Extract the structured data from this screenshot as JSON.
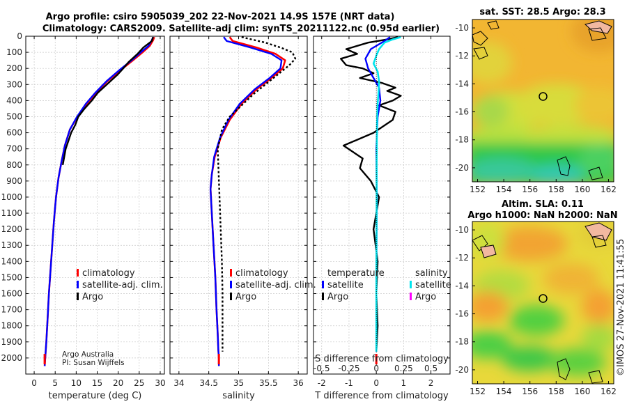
{
  "header": {
    "title1": "Argo profile: csiro 5905039_202 22-Nov-2021 14.9S 157E (NRT data)",
    "title2": "Climatology: CARS2009. Satellite-adj clim: synTS_20211122.nc (0.95d earlier)"
  },
  "attribution": {
    "org": "Argo Australia",
    "pi": "PI: Susan Wijffels"
  },
  "timestamp": "©IMOS 27-Nov-2021 11:41:55",
  "colors": {
    "red": "#ff0000",
    "blue": "#0000ff",
    "black": "#000000",
    "cyan": "#00e5ee",
    "magenta": "#ff00ff"
  },
  "chart_data": [
    {
      "type": "line",
      "name": "temperature-profile",
      "xlabel": "temperature (deg C)",
      "ylabel": "",
      "xlim": [
        -2,
        31
      ],
      "ylim": [
        2100,
        0
      ],
      "xticks": [
        0,
        5,
        10,
        15,
        20,
        25,
        30
      ],
      "yticks": [
        0,
        100,
        200,
        300,
        400,
        500,
        600,
        700,
        800,
        900,
        1000,
        1100,
        1200,
        1300,
        1400,
        1500,
        1600,
        1700,
        1800,
        1900,
        2000
      ],
      "legend": {
        "entries": [
          "climatology",
          "satellite-adj. clim.",
          "Argo"
        ],
        "position": "center-right"
      },
      "series": [
        {
          "name": "climatology",
          "color": "#ff0000",
          "width": 2.6,
          "x": [
            28.6,
            28.3,
            27.5,
            25.8,
            23.5,
            20.6,
            17.4,
            14.8,
            12.5,
            10.3,
            8.5,
            7.3,
            6.5,
            5.8,
            5.2,
            4.7,
            4.3,
            3.9,
            3.5,
            3.2,
            2.9,
            2.65,
            2.5
          ],
          "y": [
            5,
            25,
            60,
            100,
            150,
            210,
            280,
            350,
            420,
            500,
            580,
            680,
            780,
            880,
            1000,
            1150,
            1300,
            1450,
            1600,
            1750,
            1900,
            1995,
            2050
          ]
        },
        {
          "name": "satellite-adj. clim.",
          "color": "#0000ff",
          "width": 2.4,
          "x": [
            28.3,
            28.0,
            27.2,
            25.4,
            23.2,
            20.3,
            17.2,
            14.6,
            12.3,
            10.2,
            8.5,
            7.3,
            6.5,
            5.8,
            5.2,
            4.7,
            4.3,
            3.9,
            3.5,
            3.2,
            2.9,
            2.65,
            2.5
          ],
          "y": [
            5,
            25,
            60,
            100,
            150,
            210,
            280,
            350,
            420,
            500,
            580,
            680,
            780,
            880,
            1000,
            1150,
            1300,
            1450,
            1600,
            1750,
            1900,
            1995,
            2050
          ]
        },
        {
          "name": "Argo",
          "color": "#000000",
          "width": 2.4,
          "x": [
            28.3,
            28.0,
            26.0,
            24.6,
            22.5,
            21.2,
            19.8,
            17.3,
            15.2,
            13.7,
            12.0,
            10.5,
            9.8,
            8.8,
            7.5,
            6.8
          ],
          "y": [
            5,
            30,
            70,
            110,
            160,
            200,
            240,
            300,
            350,
            400,
            450,
            500,
            550,
            600,
            700,
            800
          ]
        },
        {
          "name": "bottom-marker",
          "color": "#ff0000",
          "width": 3,
          "x": [
            2.5,
            2.5
          ],
          "y": [
            1975,
            2040
          ]
        }
      ]
    },
    {
      "type": "line",
      "name": "salinity-profile",
      "xlabel": "salinity",
      "xlim": [
        33.85,
        36.15
      ],
      "ylim": [
        2100,
        0
      ],
      "xticks": [
        34,
        34.5,
        35,
        35.5,
        36
      ],
      "xticklabels": [
        "34",
        "34.5",
        "35",
        "35.5",
        "36"
      ],
      "legend": {
        "entries": [
          "climatology",
          "satellite-adj. clim.",
          "Argo"
        ],
        "position": "center-right"
      },
      "series": [
        {
          "name": "climatology",
          "color": "#ff0000",
          "width": 2.6,
          "x": [
            34.85,
            34.9,
            35.3,
            35.62,
            35.78,
            35.74,
            35.55,
            35.3,
            35.05,
            34.85,
            34.7,
            34.6,
            34.55,
            34.53,
            34.55,
            34.58,
            34.61,
            34.63,
            34.65,
            34.66,
            34.67,
            34.67
          ],
          "y": [
            5,
            30,
            70,
            110,
            150,
            200,
            260,
            330,
            420,
            520,
            630,
            750,
            860,
            950,
            1100,
            1300,
            1500,
            1700,
            1850,
            1950,
            2000,
            2050
          ]
        },
        {
          "name": "satellite-adj. clim.",
          "color": "#0000ff",
          "width": 2.4,
          "x": [
            34.75,
            34.8,
            35.2,
            35.55,
            35.72,
            35.7,
            35.52,
            35.27,
            35.02,
            34.83,
            34.69,
            34.59,
            34.55,
            34.53,
            34.55,
            34.58,
            34.61,
            34.63,
            34.65,
            34.66,
            34.67,
            34.67
          ],
          "y": [
            5,
            30,
            70,
            110,
            150,
            200,
            260,
            330,
            420,
            520,
            630,
            750,
            860,
            950,
            1100,
            1300,
            1500,
            1700,
            1850,
            1950,
            2000,
            2050
          ]
        },
        {
          "name": "Argo",
          "color": "#000000",
          "width": 2.4,
          "dash": "3,3",
          "x": [
            35.05,
            35.45,
            35.7,
            35.9,
            35.95,
            35.85,
            35.65,
            35.45,
            35.25,
            35.05,
            34.85,
            34.72,
            34.68,
            34.65,
            34.66,
            34.68,
            34.7,
            34.72,
            34.73,
            34.73,
            34.73
          ],
          "y": [
            5,
            40,
            70,
            100,
            140,
            180,
            240,
            300,
            360,
            430,
            500,
            580,
            650,
            700,
            800,
            1000,
            1200,
            1400,
            1600,
            1800,
            1960
          ]
        },
        {
          "name": "bottom-marker",
          "color": "#ff0000",
          "width": 3,
          "x": [
            34.67,
            34.67
          ],
          "y": [
            1975,
            2040
          ]
        }
      ]
    },
    {
      "type": "line",
      "name": "difference-profile",
      "xlabel": "T difference from climatology",
      "x2label": "S difference from climatology",
      "xlim": [
        -2.3,
        2.7
      ],
      "ylim": [
        2100,
        0
      ],
      "xticks": [
        -2,
        -1,
        0,
        1,
        2
      ],
      "x2ticks": [
        "-0.5",
        "-0.25",
        "0",
        "0.25",
        "0.5"
      ],
      "legend": {
        "left_title": "temperature",
        "right_title": "salinity",
        "left_entries": [
          "satellite",
          "Argo"
        ],
        "right_entries": [
          "satellite",
          "Argo"
        ]
      },
      "series": [
        {
          "name": "T Argo",
          "color": "#000000",
          "width": 2.4,
          "x": [
            0.8,
            0.4,
            -0.3,
            -1.1,
            -0.7,
            -1.3,
            -1.1,
            -0.5,
            -0.1,
            -0.6,
            0.2,
            0.7,
            0.4,
            0.9,
            0.6,
            0.1,
            0.7,
            0.6,
            -0.1,
            -1.2,
            -0.5,
            -0.6,
            -0.2,
            0.1,
            -0.1,
            0.05,
            0,
            0.05,
            0
          ],
          "y": [
            5,
            20,
            40,
            80,
            110,
            140,
            180,
            200,
            230,
            260,
            290,
            320,
            340,
            370,
            400,
            430,
            470,
            520,
            600,
            680,
            760,
            820,
            900,
            1000,
            1200,
            1400,
            1600,
            1800,
            1960
          ]
        },
        {
          "name": "T satellite",
          "color": "#0000ff",
          "width": 2.4,
          "x": [
            0.5,
            0.3,
            -0.2,
            -0.4,
            -0.3,
            -0.1,
            0.1,
            0.15,
            0.05,
            0,
            0.02,
            0,
            0
          ],
          "y": [
            5,
            30,
            80,
            140,
            200,
            260,
            320,
            400,
            500,
            700,
            1000,
            1500,
            1960
          ]
        },
        {
          "name": "S satellite",
          "color": "#00e5ee",
          "width": 2.6,
          "x": [
            0.9,
            0.6,
            0.3,
            0.1,
            0,
            -0.1,
            0.05,
            0.1,
            0.08,
            0.05,
            0.03,
            0.02,
            0.01,
            0.01,
            0.0,
            0.0
          ],
          "y": [
            5,
            20,
            40,
            80,
            120,
            170,
            220,
            280,
            350,
            420,
            520,
            650,
            800,
            1100,
            1500,
            1960
          ]
        },
        {
          "name": "zero-line",
          "color": "#000000",
          "width": 0.8,
          "dash": "1,2",
          "x": [
            0,
            0
          ],
          "y": [
            0,
            2050
          ]
        },
        {
          "name": "bottom-marker",
          "color": "#ff0000",
          "width": 3,
          "x": [
            0,
            0
          ],
          "y": [
            1975,
            2040
          ]
        }
      ]
    },
    {
      "type": "heatmap",
      "name": "sst-map",
      "title": "sat. SST: 28.5 Argo: 28.3",
      "xlim": [
        151.6,
        162.4
      ],
      "ylim": [
        -21,
        -9.4
      ],
      "xticks": [
        152,
        154,
        156,
        158,
        160,
        162
      ],
      "yticks": [
        -10,
        -12,
        -14,
        -16,
        -18,
        -20
      ],
      "marker": {
        "lon": 157,
        "lat": -14.9
      }
    },
    {
      "type": "heatmap",
      "name": "sla-map",
      "title": "Altim. SLA: 0.11",
      "subtitle": "Argo h1000: NaN h2000: NaN",
      "xlim": [
        151.6,
        162.4
      ],
      "ylim": [
        -21,
        -9.4
      ],
      "xticks": [
        152,
        154,
        156,
        158,
        160,
        162
      ],
      "yticks": [
        -10,
        -12,
        -14,
        -16,
        -18,
        -20
      ],
      "marker": {
        "lon": 157,
        "lat": -14.9
      }
    }
  ]
}
